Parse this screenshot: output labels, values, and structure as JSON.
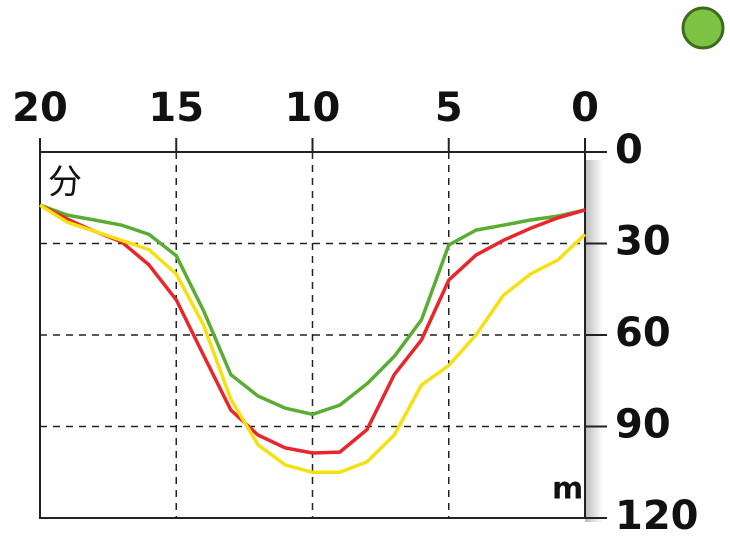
{
  "chart_data": {
    "type": "line",
    "y_label": "分",
    "x_label": "m",
    "x": [
      20,
      19,
      18,
      17,
      16,
      15,
      14,
      13,
      12,
      11,
      10,
      9,
      8,
      7,
      6,
      5,
      4,
      3,
      2,
      1,
      0
    ],
    "series": [
      {
        "color": "#5aad32",
        "values": [
          17.4,
          20.7,
          22.3,
          24,
          27,
          34,
          52,
          73,
          80,
          84,
          86,
          83,
          76,
          67,
          55,
          30.5,
          25.6,
          24,
          22.3,
          21,
          19
        ]
      },
      {
        "color": "#e8262b",
        "values": [
          17.4,
          22,
          26,
          29.5,
          37,
          48.5,
          66.6,
          84.6,
          92.8,
          97,
          98.7,
          98.4,
          91,
          73,
          61.6,
          42,
          33.8,
          29,
          25,
          21.6,
          19
        ]
      },
      {
        "color": "#f5e012",
        "values": [
          17.4,
          23,
          26,
          29,
          32,
          40,
          56.7,
          81,
          96,
          102.6,
          105,
          105,
          101.6,
          92.8,
          76.4,
          70,
          60,
          47,
          40,
          35.4,
          27
        ]
      }
    ],
    "xlim": [
      20,
      0
    ],
    "xticks": [
      20,
      15,
      10,
      5,
      0
    ],
    "ylim": [
      0,
      120
    ],
    "yticks": [
      0,
      30,
      60,
      90,
      120
    ],
    "y_axis_inverted": true,
    "grid": true
  }
}
